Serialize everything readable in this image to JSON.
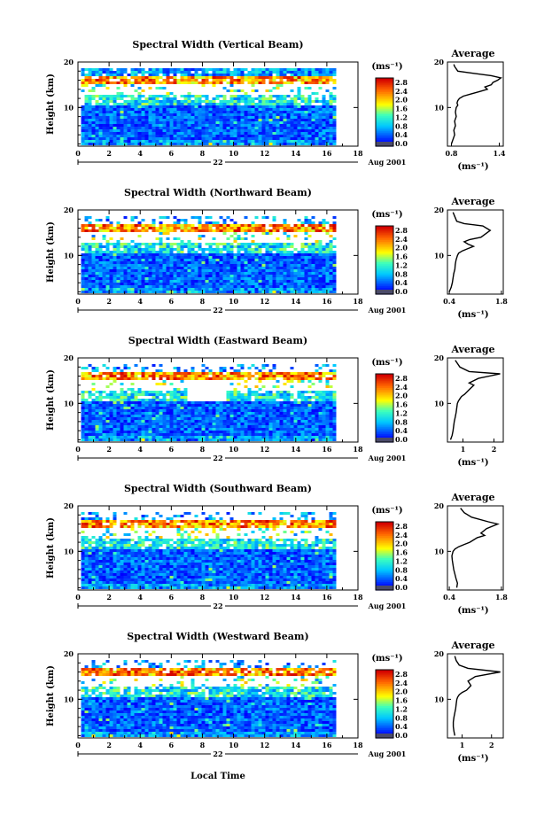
{
  "footer": {
    "xlabel": "Local Time"
  },
  "chart_data": [
    {
      "type": "heatmap",
      "title": "Spectral Width (Vertical Beam)",
      "ylabel": "Height (km)",
      "x_ticks": [
        "0",
        "2",
        "4",
        "6",
        "8",
        "10",
        "12",
        "14",
        "16",
        "18"
      ],
      "y_ticks": [
        "10",
        "20"
      ],
      "xlim": [
        0,
        18
      ],
      "ylim": [
        1.5,
        20
      ],
      "day_label": "22",
      "date_label": "Aug 2001",
      "colorbar": {
        "unit": "(ms⁻¹)",
        "ticks": [
          "0.0",
          "0.4",
          "0.8",
          "1.2",
          "1.6",
          "2.0",
          "2.4",
          "2.8"
        ]
      },
      "profile": {
        "type": "line",
        "title": "Average",
        "xlabel": "(ms⁻¹)",
        "x_ticks": [
          "0.8",
          "1.4"
        ],
        "y_ticks": [
          "10",
          "20"
        ],
        "xlim": [
          0.75,
          1.45
        ],
        "ylim": [
          1.5,
          20
        ],
        "x": [
          0.8,
          0.82,
          0.84,
          0.83,
          0.85,
          0.84,
          0.86,
          0.85,
          0.86,
          0.88,
          0.87,
          0.88,
          0.9,
          0.95,
          1.05,
          1.15,
          1.25,
          1.22,
          1.3,
          1.32,
          1.38,
          1.42,
          1.3,
          1.08,
          0.88,
          0.84,
          0.83
        ],
        "y": [
          2,
          3,
          4,
          5,
          6,
          7,
          8,
          9,
          10,
          10.5,
          11,
          11.5,
          12,
          12.5,
          13,
          13.5,
          14,
          14.5,
          15,
          15.5,
          16,
          16.5,
          17,
          17.5,
          18,
          19,
          19.5
        ]
      }
    },
    {
      "type": "heatmap",
      "title": "Spectral Width (Northward Beam)",
      "ylabel": "Height (km)",
      "x_ticks": [
        "0",
        "2",
        "4",
        "6",
        "8",
        "10",
        "12",
        "14",
        "16",
        "18"
      ],
      "y_ticks": [
        "10",
        "20"
      ],
      "xlim": [
        0,
        18
      ],
      "ylim": [
        1.5,
        20
      ],
      "day_label": "22",
      "date_label": "Aug 2001",
      "colorbar": {
        "unit": "(ms⁻¹)",
        "ticks": [
          "0.0",
          "0.4",
          "0.8",
          "1.2",
          "1.6",
          "2.0",
          "2.4",
          "2.8"
        ]
      },
      "profile": {
        "type": "line",
        "title": "Average",
        "xlabel": "(ms⁻¹)",
        "x_ticks": [
          "0.4",
          "1.8"
        ],
        "y_ticks": [
          "10",
          "20"
        ],
        "xlim": [
          0.35,
          1.85
        ],
        "ylim": [
          1.5,
          20
        ],
        "x": [
          0.4,
          0.45,
          0.48,
          0.5,
          0.52,
          0.55,
          0.56,
          0.58,
          0.6,
          0.62,
          0.65,
          0.75,
          0.9,
          1.05,
          0.9,
          0.8,
          0.95,
          1.25,
          1.5,
          1.3,
          0.8,
          0.6,
          0.55,
          0.5
        ],
        "y": [
          2,
          3,
          4,
          5,
          6,
          7,
          8,
          9,
          9.5,
          10,
          10.5,
          11,
          11.5,
          12,
          12.5,
          13,
          13.5,
          14,
          15.5,
          16.5,
          17,
          17.5,
          18.5,
          19.5
        ]
      }
    },
    {
      "type": "heatmap",
      "title": "Spectral Width (Eastward Beam)",
      "ylabel": "Height (km)",
      "x_ticks": [
        "0",
        "2",
        "4",
        "6",
        "8",
        "10",
        "12",
        "14",
        "16",
        "18"
      ],
      "y_ticks": [
        "10",
        "20"
      ],
      "xlim": [
        0,
        18
      ],
      "ylim": [
        1.5,
        20
      ],
      "day_label": "22",
      "date_label": "Aug 2001",
      "colorbar": {
        "unit": "(ms⁻¹)",
        "ticks": [
          "0.0",
          "0.4",
          "0.8",
          "1.2",
          "1.6",
          "2.0",
          "2.4",
          "2.8"
        ]
      },
      "profile": {
        "type": "line",
        "title": "Average",
        "xlabel": "(ms⁻¹)",
        "x_ticks": [
          "1",
          "2"
        ],
        "y_ticks": [
          "10",
          "20"
        ],
        "xlim": [
          0.5,
          2.3
        ],
        "ylim": [
          1.5,
          20
        ],
        "x": [
          0.6,
          0.65,
          0.68,
          0.7,
          0.72,
          0.75,
          0.78,
          0.8,
          0.82,
          0.85,
          0.9,
          0.95,
          1.05,
          1.2,
          1.35,
          1.2,
          1.5,
          2.2,
          1.2,
          0.9,
          0.8,
          0.75
        ],
        "y": [
          2,
          3,
          4,
          5,
          6,
          7,
          8,
          9,
          10,
          10.5,
          11,
          11.5,
          12,
          13,
          14,
          14.5,
          15.5,
          16.5,
          17,
          18,
          19,
          19.5
        ]
      }
    },
    {
      "type": "heatmap",
      "title": "Spectral Width (Southward Beam)",
      "ylabel": "Height (km)",
      "x_ticks": [
        "0",
        "2",
        "4",
        "6",
        "8",
        "10",
        "12",
        "14",
        "16",
        "18"
      ],
      "y_ticks": [
        "10",
        "20"
      ],
      "xlim": [
        0,
        18
      ],
      "ylim": [
        1.5,
        20
      ],
      "day_label": "22",
      "date_label": "Aug 2001",
      "colorbar": {
        "unit": "(ms⁻¹)",
        "ticks": [
          "0.0",
          "0.4",
          "0.8",
          "1.2",
          "1.6",
          "2.0",
          "2.4",
          "2.8"
        ]
      },
      "profile": {
        "type": "line",
        "title": "Average",
        "xlabel": "(ms⁻¹)",
        "x_ticks": [
          "0.4",
          "1.8"
        ],
        "y_ticks": [
          "10",
          "20"
        ],
        "xlim": [
          0.35,
          1.85
        ],
        "ylim": [
          1.5,
          20
        ],
        "x": [
          0.6,
          0.62,
          0.58,
          0.55,
          0.52,
          0.5,
          0.48,
          0.47,
          0.5,
          0.55,
          0.65,
          0.8,
          0.95,
          1.05,
          1.15,
          1.35,
          1.25,
          1.4,
          1.7,
          1.45,
          1.0,
          0.8,
          0.7
        ],
        "y": [
          2,
          3,
          4,
          5,
          6,
          7,
          8,
          9,
          10,
          10.5,
          11,
          11.5,
          12,
          12.5,
          13,
          13.5,
          14,
          15,
          16,
          16.5,
          17.5,
          18.5,
          19.5
        ]
      }
    },
    {
      "type": "heatmap",
      "title": "Spectral Width (Westward Beam)",
      "ylabel": "Height (km)",
      "x_ticks": [
        "0",
        "2",
        "4",
        "6",
        "8",
        "10",
        "12",
        "14",
        "16",
        "18"
      ],
      "y_ticks": [
        "10",
        "20"
      ],
      "xlim": [
        0,
        18
      ],
      "ylim": [
        1.5,
        20
      ],
      "day_label": "22",
      "date_label": "Aug 2001",
      "colorbar": {
        "unit": "(ms⁻¹)",
        "ticks": [
          "0.0",
          "0.4",
          "0.8",
          "1.2",
          "1.6",
          "2.0",
          "2.4",
          "2.8"
        ]
      },
      "profile": {
        "type": "line",
        "title": "Average",
        "xlabel": "(ms⁻¹)",
        "x_ticks": [
          "1",
          "2"
        ],
        "y_ticks": [
          "10",
          "20"
        ],
        "xlim": [
          0.5,
          2.4
        ],
        "ylim": [
          1.5,
          20
        ],
        "x": [
          0.75,
          0.72,
          0.7,
          0.7,
          0.72,
          0.75,
          0.78,
          0.8,
          0.82,
          0.85,
          0.9,
          1.0,
          1.15,
          1.3,
          1.25,
          1.2,
          1.45,
          2.3,
          1.2,
          0.9,
          0.8,
          0.75
        ],
        "y": [
          2,
          3,
          4,
          5,
          6,
          7,
          8,
          9,
          10,
          10.5,
          11,
          11.5,
          12,
          13,
          13.5,
          14,
          15,
          16,
          16.8,
          17.5,
          18.5,
          19.5
        ]
      }
    }
  ]
}
